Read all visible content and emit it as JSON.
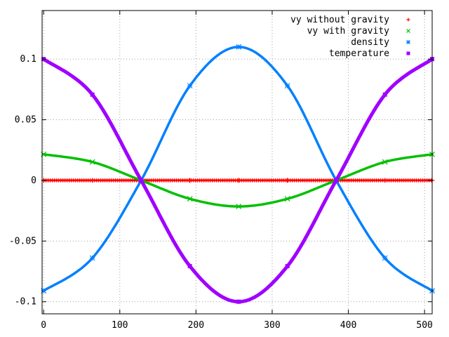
{
  "chart_data": {
    "type": "scatter",
    "title": "",
    "xlabel": "",
    "ylabel": "",
    "xlim": [
      -2,
      510
    ],
    "ylim": [
      -0.11,
      0.14
    ],
    "grid": true,
    "legend_position": "top-right",
    "x_ticks": [
      0,
      100,
      200,
      300,
      400,
      500
    ],
    "x_tick_labels": [
      "0",
      "100",
      "200",
      "300",
      "400",
      "500"
    ],
    "y_ticks": [
      -0.1,
      -0.05,
      0,
      0.05,
      0.1
    ],
    "y_tick_labels": [
      "-0.1",
      "-0.05",
      "0",
      "0.05",
      "0.1"
    ],
    "series": [
      {
        "name": "vy without gravity",
        "color": "#ff0000",
        "marker": "plus",
        "x": [
          0,
          64,
          128,
          192,
          256,
          320,
          384,
          448,
          510
        ],
        "values": [
          0,
          0,
          0,
          0,
          0,
          0,
          0,
          0,
          0
        ]
      },
      {
        "name": "vy with gravity",
        "color": "#00c000",
        "marker": "cross",
        "x": [
          0,
          64,
          128,
          192,
          256,
          320,
          384,
          448,
          510
        ],
        "values": [
          0.0215,
          0.0152,
          0.0,
          -0.0152,
          -0.0215,
          -0.0152,
          0.0,
          0.0152,
          0.0215
        ]
      },
      {
        "name": "density",
        "color": "#0080ff",
        "marker": "star",
        "x": [
          0,
          64,
          128,
          192,
          256,
          320,
          384,
          448,
          510
        ],
        "values": [
          -0.091,
          -0.064,
          0.0,
          0.078,
          0.11,
          0.078,
          0.0,
          -0.064,
          -0.091
        ]
      },
      {
        "name": "temperature",
        "color": "#a000ff",
        "marker": "square",
        "x": [
          0,
          64,
          128,
          192,
          256,
          320,
          384,
          448,
          510
        ],
        "values": [
          0.1,
          0.0707,
          0.0,
          -0.0707,
          -0.1,
          -0.0707,
          0.0,
          0.0707,
          0.1
        ]
      }
    ]
  }
}
